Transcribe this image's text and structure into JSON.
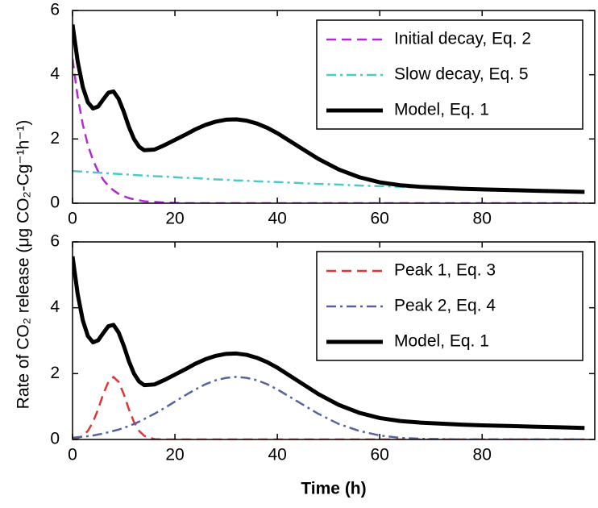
{
  "ylabel": "Rate of CO₂ release (μg CO₂-Cg⁻¹h⁻¹)",
  "chart_data": [
    {
      "type": "line",
      "legend": "upper right",
      "x": [
        0,
        1,
        2,
        3,
        4,
        5,
        6,
        7,
        8,
        9,
        10,
        11,
        12,
        13,
        14,
        16,
        18,
        20,
        22,
        24,
        26,
        28,
        30,
        32,
        34,
        36,
        38,
        40,
        44,
        48,
        52,
        56,
        60,
        64,
        68,
        72,
        76,
        80,
        85,
        90,
        95,
        100
      ],
      "xlim": [
        0,
        102
      ],
      "xticks": [
        0,
        20,
        40,
        60,
        80
      ],
      "ylim": [
        0,
        6
      ],
      "yticks": [
        0,
        2,
        4,
        6
      ],
      "series": [
        {
          "name": "Initial decay, Eq. 2",
          "color": "#b02ad0",
          "dash": "dashed",
          "values": [
            4.5,
            3.32,
            2.45,
            1.81,
            1.34,
            0.99,
            0.73,
            0.54,
            0.4,
            0.29,
            0.22,
            0.16,
            0.12,
            0.09,
            0.06,
            0.04,
            0.02,
            0.01,
            0,
            0,
            0,
            0,
            0,
            0,
            0,
            0,
            0,
            0,
            0,
            0,
            0,
            0,
            0,
            0,
            0,
            0,
            0,
            0,
            0,
            0,
            0,
            0
          ]
        },
        {
          "name": "Slow decay, Eq. 5",
          "color": "#4ec9c9",
          "dash": "dashdot",
          "values": [
            1.0,
            0.99,
            0.98,
            0.97,
            0.96,
            0.95,
            0.94,
            0.93,
            0.92,
            0.91,
            0.9,
            0.89,
            0.88,
            0.87,
            0.86,
            0.84,
            0.83,
            0.81,
            0.79,
            0.78,
            0.76,
            0.74,
            0.73,
            0.71,
            0.7,
            0.68,
            0.67,
            0.66,
            0.63,
            0.6,
            0.58,
            0.55,
            0.53,
            0.51,
            0.49,
            0.47,
            0.45,
            0.43,
            0.41,
            0.39,
            0.37,
            0.35
          ]
        },
        {
          "name": "Model, Eq. 1",
          "color": "#000000",
          "dash": "solid",
          "values": [
            5.56,
            4.42,
            3.62,
            3.14,
            2.95,
            3.01,
            3.23,
            3.44,
            3.48,
            3.25,
            2.85,
            2.38,
            2.0,
            1.76,
            1.65,
            1.67,
            1.81,
            1.97,
            2.13,
            2.3,
            2.44,
            2.54,
            2.6,
            2.61,
            2.57,
            2.48,
            2.35,
            2.18,
            1.78,
            1.38,
            1.05,
            0.81,
            0.65,
            0.56,
            0.51,
            0.48,
            0.45,
            0.43,
            0.41,
            0.39,
            0.37,
            0.35
          ]
        }
      ]
    },
    {
      "type": "line",
      "legend": "upper right",
      "xlabel": "Time (h)",
      "x": [
        0,
        1,
        2,
        3,
        4,
        5,
        6,
        7,
        8,
        9,
        10,
        11,
        12,
        13,
        14,
        16,
        18,
        20,
        22,
        24,
        26,
        28,
        30,
        32,
        34,
        36,
        38,
        40,
        44,
        48,
        52,
        56,
        60,
        64,
        68,
        72,
        76,
        80,
        85,
        90,
        95,
        100
      ],
      "xlim": [
        0,
        102
      ],
      "xticks": [
        0,
        20,
        40,
        60,
        80
      ],
      "ylim": [
        0,
        6
      ],
      "yticks": [
        0,
        2,
        4,
        6
      ],
      "series": [
        {
          "name": "Peak 1, Eq. 3",
          "color": "#e03535",
          "dash": "dashed",
          "values": [
            0.01,
            0.04,
            0.11,
            0.26,
            0.53,
            0.92,
            1.38,
            1.75,
            1.9,
            1.75,
            1.38,
            0.92,
            0.53,
            0.26,
            0.11,
            0.01,
            0,
            0,
            0,
            0,
            0,
            0,
            0,
            0,
            0,
            0,
            0,
            0,
            0,
            0,
            0,
            0,
            0,
            0,
            0,
            0,
            0,
            0,
            0,
            0,
            0,
            0
          ]
        },
        {
          "name": "Peak 2, Eq. 4",
          "color": "#5563a0",
          "dash": "dashdot",
          "values": [
            0.05,
            0.07,
            0.08,
            0.1,
            0.12,
            0.15,
            0.18,
            0.22,
            0.26,
            0.3,
            0.35,
            0.41,
            0.47,
            0.54,
            0.62,
            0.78,
            0.96,
            1.15,
            1.34,
            1.52,
            1.68,
            1.8,
            1.87,
            1.9,
            1.87,
            1.8,
            1.68,
            1.52,
            1.15,
            0.78,
            0.47,
            0.26,
            0.12,
            0.05,
            0.02,
            0.01,
            0,
            0,
            0,
            0,
            0,
            0
          ]
        },
        {
          "name": "Model, Eq. 1",
          "color": "#000000",
          "dash": "solid",
          "values": [
            5.56,
            4.42,
            3.62,
            3.14,
            2.95,
            3.01,
            3.23,
            3.44,
            3.48,
            3.25,
            2.85,
            2.38,
            2.0,
            1.76,
            1.65,
            1.67,
            1.81,
            1.97,
            2.13,
            2.3,
            2.44,
            2.54,
            2.6,
            2.61,
            2.57,
            2.48,
            2.35,
            2.18,
            1.78,
            1.38,
            1.05,
            0.81,
            0.65,
            0.56,
            0.51,
            0.48,
            0.45,
            0.43,
            0.41,
            0.39,
            0.37,
            0.35
          ]
        }
      ]
    }
  ]
}
